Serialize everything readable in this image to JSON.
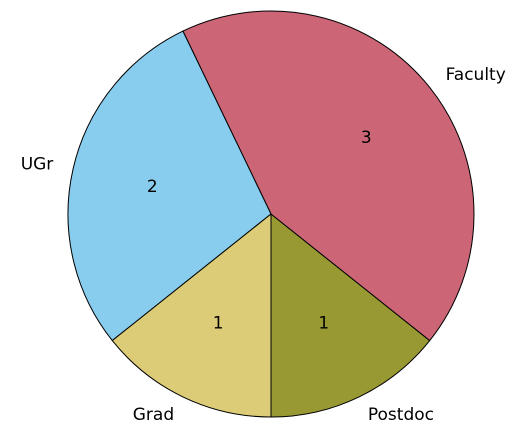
{
  "chart_data": {
    "type": "pie",
    "categories": [
      "Postdoc",
      "Faculty",
      "UGr",
      "Grad"
    ],
    "values": [
      1,
      3,
      2,
      1
    ],
    "colors": [
      "#999933",
      "#cc6677",
      "#88ccee",
      "#ddcc77"
    ],
    "start_angle": -90
  }
}
